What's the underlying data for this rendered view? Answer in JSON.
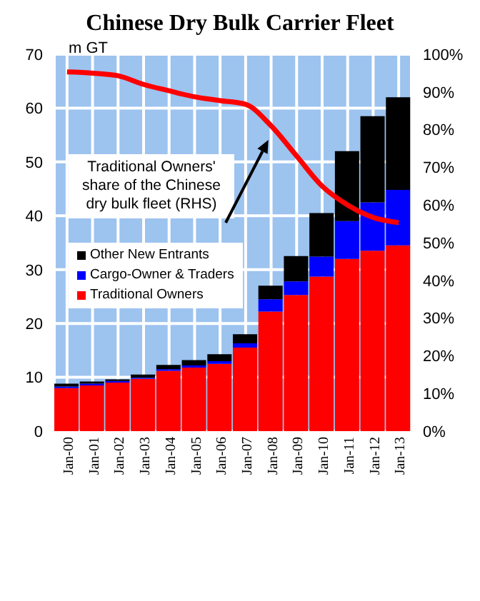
{
  "chart_data": {
    "type": "bar",
    "title": "Chinese Dry Bulk Carrier Fleet",
    "ylabel": "m GT",
    "categories": [
      "Jan-00",
      "Jan-01",
      "Jan-02",
      "Jan-03",
      "Jan-04",
      "Jan-05",
      "Jan-06",
      "Jan-07",
      "Jan-08",
      "Jan-09",
      "Jan-10",
      "Jan-11",
      "Jan-12",
      "Jan-13"
    ],
    "stacked": true,
    "series": [
      {
        "name": "Traditional Owners",
        "color": "#ff0000",
        "values": [
          8.0,
          8.5,
          9.0,
          9.7,
          11.2,
          11.8,
          12.5,
          15.5,
          22.2,
          25.3,
          28.7,
          32,
          33.5,
          34.5
        ]
      },
      {
        "name": "Cargo-Owner & Traders",
        "color": "#0000ff",
        "values": [
          0.3,
          0.3,
          0.3,
          0.2,
          0.3,
          0.4,
          0.5,
          0.8,
          2.3,
          2.5,
          3.7,
          7,
          9,
          10.3
        ]
      },
      {
        "name": "Other New Entrants",
        "color": "#000000",
        "values": [
          0.5,
          0.4,
          0.3,
          0.6,
          0.8,
          1.0,
          1.3,
          1.7,
          2.5,
          4.7,
          8.1,
          13,
          16,
          17.2
        ]
      },
      {
        "type": "line",
        "axis": "y2",
        "color": "#ff0000",
        "values": [
          95.3,
          95,
          94.3,
          92,
          90.3,
          88.7,
          87.7,
          86.7,
          81,
          73,
          65,
          60,
          56.7,
          55.3
        ]
      }
    ],
    "ylim": [
      0,
      70
    ],
    "yticks": [
      0,
      10,
      20,
      30,
      40,
      50,
      60,
      70
    ],
    "y2lim": [
      0,
      100
    ],
    "y2ticks": [
      {
        "value": 0,
        "label": "0%"
      },
      {
        "value": 10,
        "label": "10%"
      },
      {
        "value": 20,
        "label": "20%"
      },
      {
        "value": 30,
        "label": "30%"
      },
      {
        "value": 40,
        "label": "40%"
      },
      {
        "value": 50,
        "label": "50%"
      },
      {
        "value": 60,
        "label": "60%"
      },
      {
        "value": 70,
        "label": "70%"
      },
      {
        "value": 80,
        "label": "80%"
      },
      {
        "value": 90,
        "label": "90%"
      },
      {
        "value": 100,
        "label": "100%"
      }
    ],
    "grid": true,
    "legend": "left",
    "marker": "none",
    "line_style": "solid",
    "annotations": [
      "Traditional Owners' share of the Chinese dry bulk fleet (RHS)"
    ]
  }
}
